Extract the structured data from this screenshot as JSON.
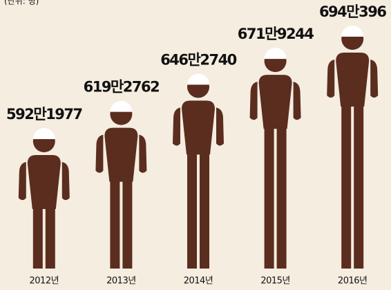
{
  "chart_data": {
    "type": "pictograph",
    "unit_label": "(단위: 명)",
    "categories": [
      "2012년",
      "2013년",
      "2014년",
      "2015년",
      "2016년"
    ],
    "values": [
      5921977,
      6192762,
      6462740,
      6719244,
      6940396
    ],
    "value_labels": [
      "592만1977",
      "619만2762",
      "646만2740",
      "671만9244",
      "694만396"
    ],
    "color": "#5b2d1f"
  }
}
